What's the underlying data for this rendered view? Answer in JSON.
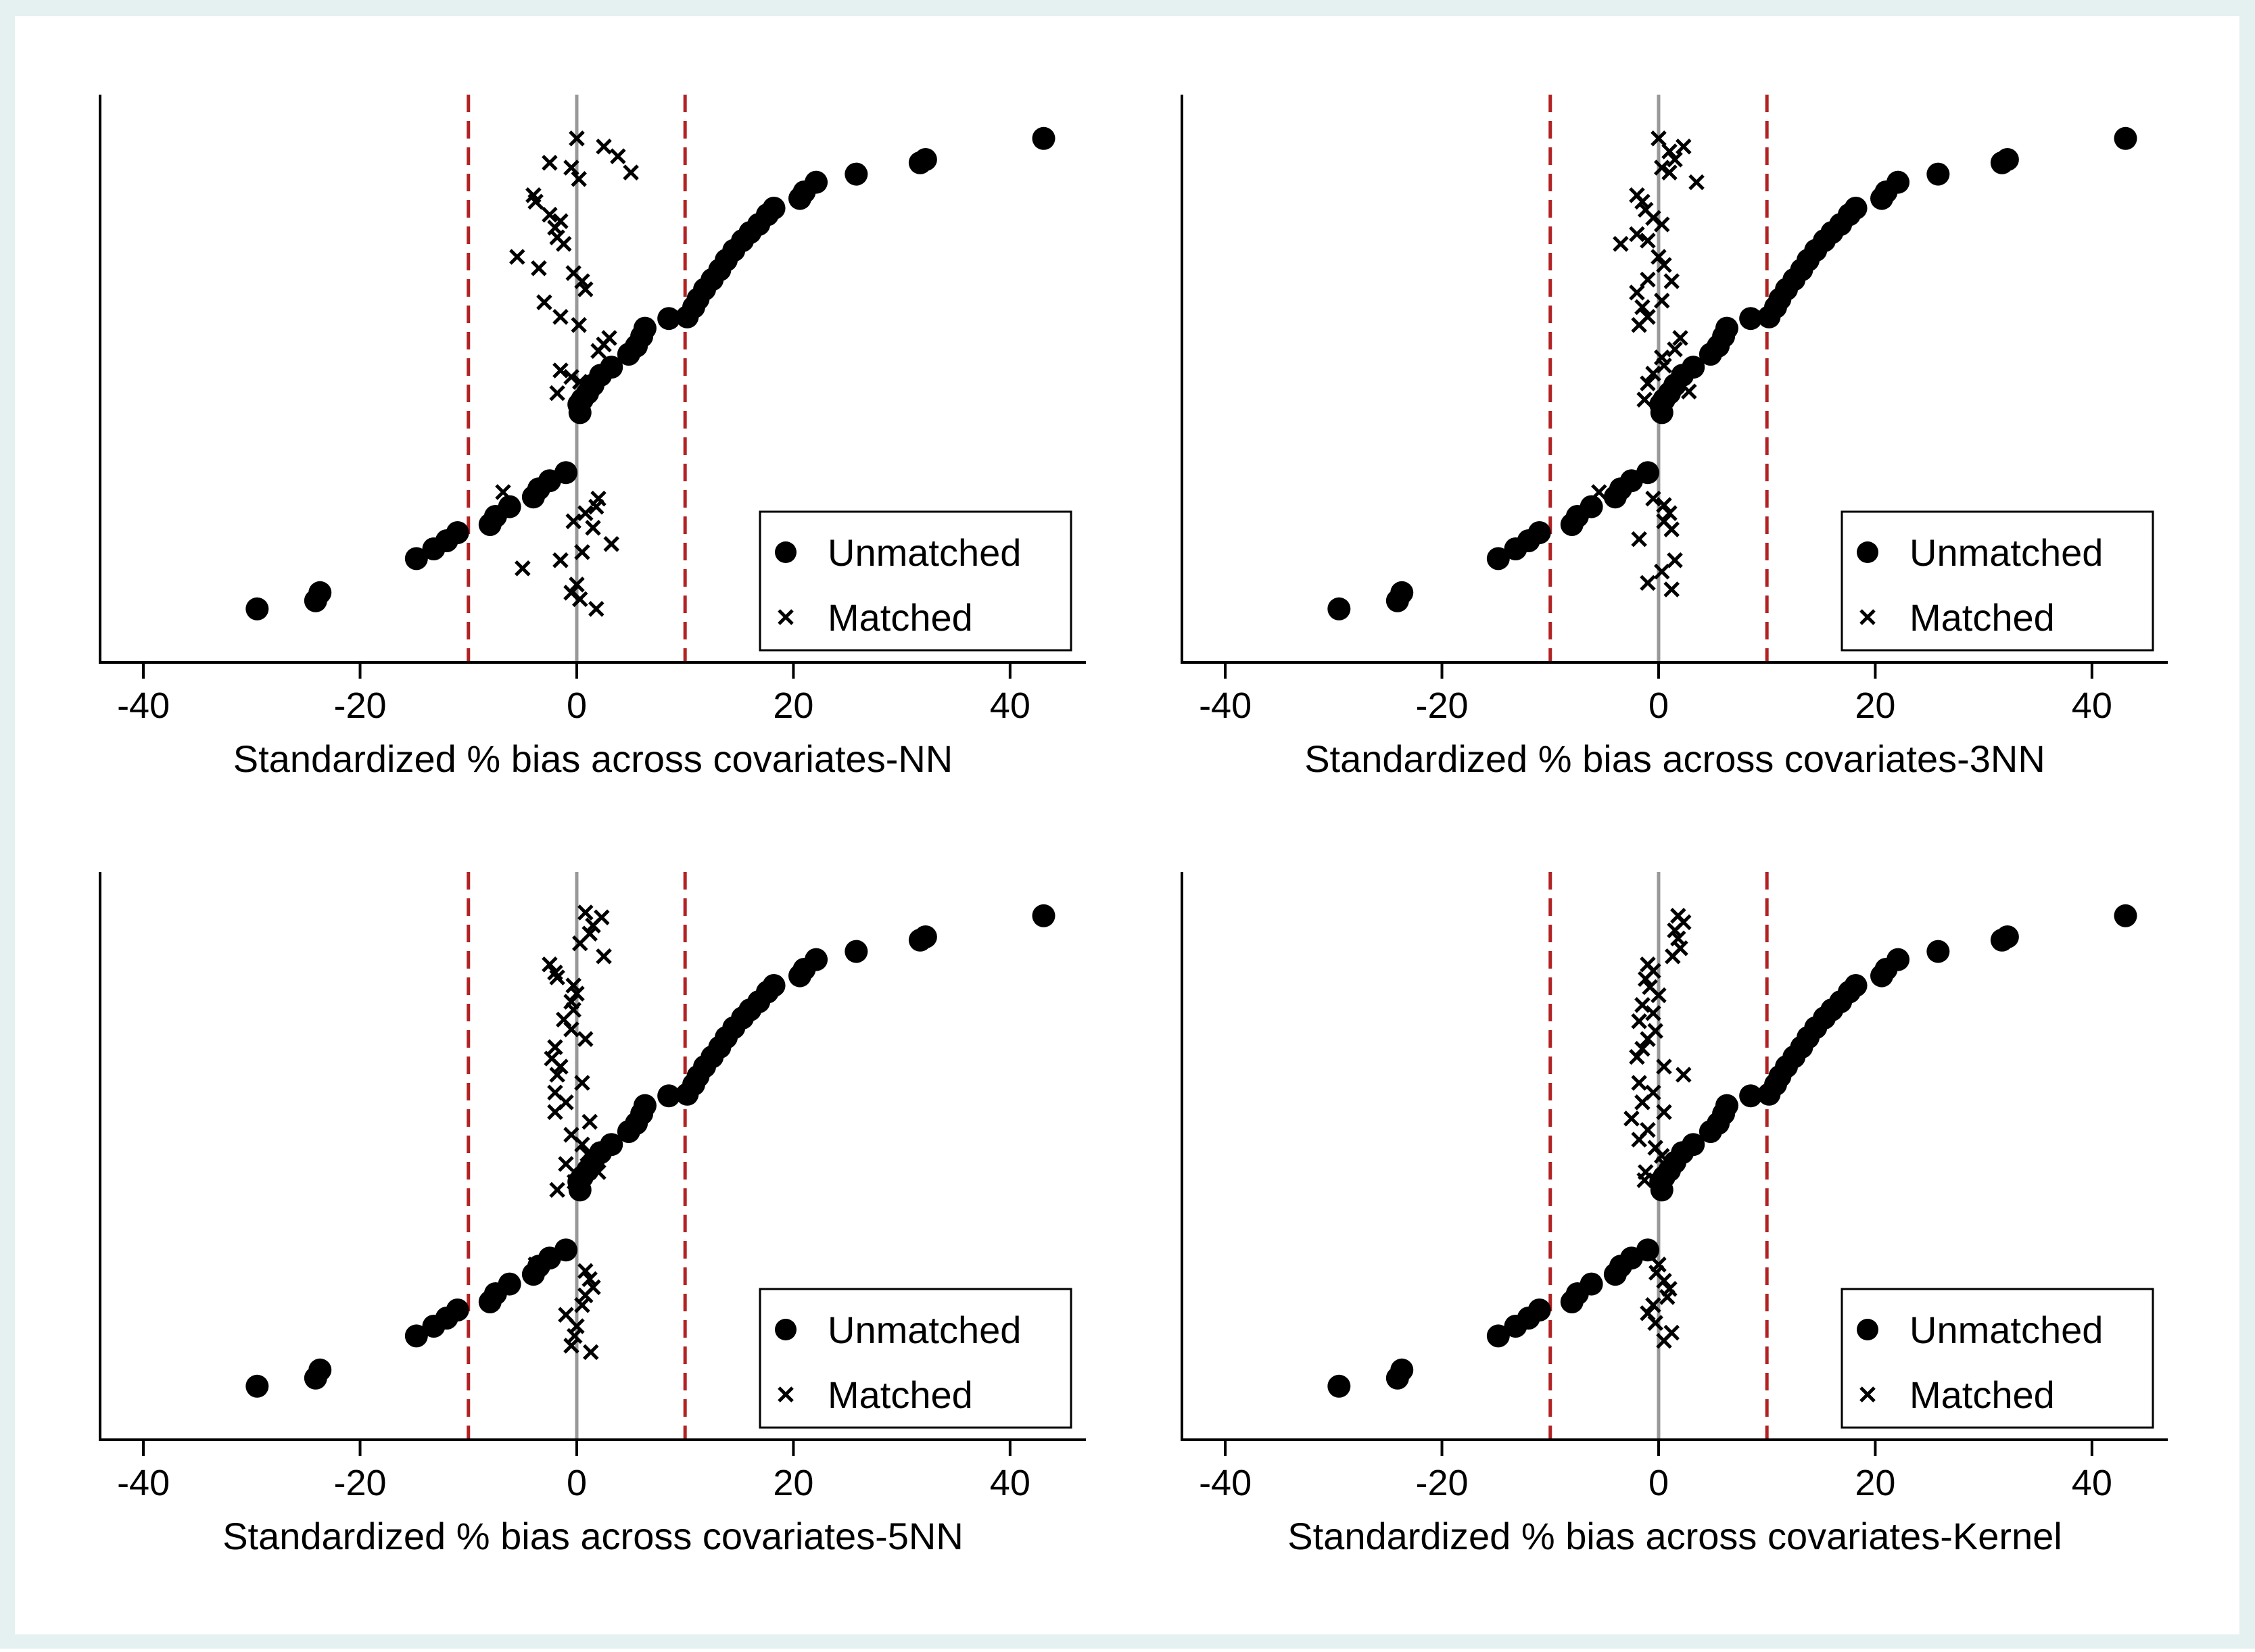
{
  "figure": {
    "background_color": "#e5f0f0",
    "plot_bg_color": "#ffffff",
    "accent_color": "#b22222",
    "zero_line_color": "#999999",
    "marker_color": "#000000"
  },
  "chart_data": [
    {
      "type": "scatter",
      "xlabel": "Standardized % bias across covariates-NN",
      "xlim": [
        -44,
        47
      ],
      "xticks": [
        -40,
        -20,
        0,
        20,
        40
      ],
      "ylim": [
        0,
        35
      ],
      "reference_lines_x": [
        -10,
        10
      ],
      "zero_line_x": 0,
      "legend": {
        "position": "bottom-right",
        "entries": [
          "Unmatched",
          "Matched"
        ]
      },
      "series": [
        {
          "name": "Unmatched",
          "marker": "filled-circle",
          "x": [
            43.1,
            32.2,
            31.7,
            25.8,
            22.1,
            21.0,
            20.6,
            18.2,
            17.6,
            16.8,
            16.0,
            15.3,
            14.5,
            13.8,
            13.2,
            12.5,
            11.8,
            11.2,
            10.8,
            10.2,
            8.5,
            6.3,
            6.0,
            5.5,
            4.8,
            3.2,
            2.2,
            1.5,
            1.0,
            0.5,
            0.2,
            0.3,
            -1.0,
            -2.5,
            -3.5,
            -4.0,
            -6.2,
            -7.5,
            -8.0,
            -11.0,
            -12.0,
            -13.2,
            -14.8,
            -23.7,
            -24.1,
            -29.5
          ],
          "y": [
            32.3,
            31.0,
            30.8,
            30.1,
            29.6,
            29.0,
            28.6,
            28.0,
            27.6,
            27.0,
            26.5,
            26.0,
            25.4,
            24.8,
            24.2,
            23.6,
            23.0,
            22.4,
            21.9,
            21.3,
            21.2,
            20.6,
            20.1,
            19.5,
            19.0,
            18.2,
            17.7,
            17.1,
            16.6,
            16.2,
            15.9,
            15.4,
            11.7,
            11.2,
            10.7,
            10.2,
            9.6,
            9.0,
            8.5,
            8.0,
            7.5,
            7.0,
            6.4,
            4.3,
            3.8,
            3.3
          ]
        },
        {
          "name": "Matched",
          "marker": "x",
          "x": [
            0.0,
            2.5,
            3.8,
            5.0,
            -2.5,
            -0.5,
            0.2,
            -4.0,
            -3.8,
            -2.5,
            -2.0,
            -1.5,
            -1.8,
            -1.2,
            -5.5,
            -3.5,
            -0.3,
            0.5,
            0.8,
            -3.0,
            -1.5,
            0.2,
            3.0,
            2.5,
            2.0,
            -1.5,
            -0.5,
            0.3,
            -1.8,
            -6.8,
            2.0,
            1.8,
            0.8,
            -0.3,
            1.5,
            3.2,
            0.5,
            -1.5,
            -5.0,
            0.0,
            -0.5,
            0.3,
            1.8
          ],
          "y": [
            32.3,
            31.8,
            31.2,
            30.2,
            30.8,
            30.5,
            29.8,
            28.8,
            28.4,
            27.6,
            26.8,
            27.2,
            26.2,
            25.8,
            25.0,
            24.3,
            24.0,
            23.5,
            23.0,
            22.2,
            21.3,
            20.8,
            20.0,
            19.6,
            19.2,
            18.0,
            17.6,
            17.3,
            16.6,
            10.5,
            10.1,
            9.6,
            9.2,
            8.7,
            8.3,
            7.3,
            6.8,
            6.3,
            5.8,
            4.8,
            4.3,
            3.9,
            3.3
          ]
        }
      ]
    },
    {
      "type": "scatter",
      "xlabel": "Standardized % bias across covariates-3NN",
      "xlim": [
        -44,
        47
      ],
      "xticks": [
        -40,
        -20,
        0,
        20,
        40
      ],
      "ylim": [
        0,
        35
      ],
      "reference_lines_x": [
        -10,
        10
      ],
      "zero_line_x": 0,
      "legend": {
        "position": "bottom-right",
        "entries": [
          "Unmatched",
          "Matched"
        ]
      },
      "series": [
        {
          "name": "Unmatched",
          "marker": "filled-circle",
          "x": [
            43.1,
            32.2,
            31.7,
            25.8,
            22.1,
            21.0,
            20.6,
            18.2,
            17.6,
            16.8,
            16.0,
            15.3,
            14.5,
            13.8,
            13.2,
            12.5,
            11.8,
            11.2,
            10.8,
            10.2,
            8.5,
            6.3,
            6.0,
            5.5,
            4.8,
            3.2,
            2.2,
            1.5,
            1.0,
            0.5,
            0.2,
            0.3,
            -1.0,
            -2.5,
            -3.5,
            -4.0,
            -6.2,
            -7.5,
            -8.0,
            -11.0,
            -12.0,
            -13.2,
            -14.8,
            -23.7,
            -24.1,
            -29.5
          ],
          "y": [
            32.3,
            31.0,
            30.8,
            30.1,
            29.6,
            29.0,
            28.6,
            28.0,
            27.6,
            27.0,
            26.5,
            26.0,
            25.4,
            24.8,
            24.2,
            23.6,
            23.0,
            22.4,
            21.9,
            21.3,
            21.2,
            20.6,
            20.1,
            19.5,
            19.0,
            18.2,
            17.7,
            17.1,
            16.6,
            16.2,
            15.9,
            15.4,
            11.7,
            11.2,
            10.7,
            10.2,
            9.6,
            9.0,
            8.5,
            8.0,
            7.5,
            7.0,
            6.4,
            4.3,
            3.8,
            3.3
          ]
        },
        {
          "name": "Matched",
          "marker": "x",
          "x": [
            0.0,
            1.0,
            2.3,
            1.5,
            0.3,
            1.0,
            3.5,
            -2.0,
            -1.5,
            -1.2,
            -0.5,
            0.3,
            -2.0,
            -3.5,
            -1.0,
            0.0,
            0.5,
            -1.0,
            1.2,
            -2.0,
            0.3,
            -1.5,
            -1.0,
            -1.8,
            2.0,
            1.5,
            0.3,
            0.5,
            -0.5,
            -1.0,
            2.8,
            -1.3,
            -5.5,
            -0.5,
            0.5,
            1.0,
            0.5,
            1.2,
            -1.8,
            1.5,
            0.3,
            -1.0,
            1.2
          ],
          "y": [
            32.3,
            31.5,
            31.8,
            31.0,
            30.5,
            30.2,
            29.6,
            28.8,
            28.4,
            27.9,
            27.4,
            27.0,
            26.4,
            25.8,
            26.0,
            25.0,
            24.5,
            23.6,
            23.5,
            22.8,
            22.3,
            21.9,
            21.3,
            20.8,
            20.0,
            19.3,
            18.8,
            18.3,
            17.8,
            17.2,
            16.7,
            16.2,
            10.5,
            10.1,
            9.7,
            9.2,
            8.7,
            8.2,
            7.6,
            6.3,
            5.6,
            4.9,
            4.5
          ]
        }
      ]
    },
    {
      "type": "scatter",
      "xlabel": "Standardized % bias across covariates-5NN",
      "xlim": [
        -44,
        47
      ],
      "xticks": [
        -40,
        -20,
        0,
        20,
        40
      ],
      "ylim": [
        0,
        35
      ],
      "reference_lines_x": [
        -10,
        10
      ],
      "zero_line_x": 0,
      "legend": {
        "position": "bottom-right",
        "entries": [
          "Unmatched",
          "Matched"
        ]
      },
      "series": [
        {
          "name": "Unmatched",
          "marker": "filled-circle",
          "x": [
            43.1,
            32.2,
            31.7,
            25.8,
            22.1,
            21.0,
            20.6,
            18.2,
            17.6,
            16.8,
            16.0,
            15.3,
            14.5,
            13.8,
            13.2,
            12.5,
            11.8,
            11.2,
            10.8,
            10.2,
            8.5,
            6.3,
            6.0,
            5.5,
            4.8,
            3.2,
            2.2,
            1.5,
            1.0,
            0.5,
            0.2,
            0.3,
            -1.0,
            -2.5,
            -3.5,
            -4.0,
            -6.2,
            -7.5,
            -8.0,
            -11.0,
            -12.0,
            -13.2,
            -14.8,
            -23.7,
            -24.1,
            -29.5
          ],
          "y": [
            32.3,
            31.0,
            30.8,
            30.1,
            29.6,
            29.0,
            28.6,
            28.0,
            27.6,
            27.0,
            26.5,
            26.0,
            25.4,
            24.8,
            24.2,
            23.6,
            23.0,
            22.4,
            21.9,
            21.3,
            21.2,
            20.6,
            20.1,
            19.5,
            19.0,
            18.2,
            17.7,
            17.1,
            16.6,
            16.2,
            15.9,
            15.4,
            11.7,
            11.2,
            10.7,
            10.2,
            9.6,
            9.0,
            8.5,
            8.0,
            7.5,
            7.0,
            6.4,
            4.3,
            3.8,
            3.3
          ]
        },
        {
          "name": "Matched",
          "marker": "x",
          "x": [
            0.8,
            2.3,
            1.5,
            1.2,
            0.3,
            2.5,
            -2.5,
            -2.0,
            -1.8,
            -0.3,
            0.0,
            -0.5,
            -0.3,
            -1.2,
            -0.5,
            0.8,
            -2.0,
            -2.3,
            -1.5,
            -1.8,
            0.5,
            -2.0,
            -1.0,
            -2.0,
            1.2,
            -0.5,
            0.5,
            1.0,
            -1.0,
            2.0,
            -0.2,
            -1.8,
            -3.8,
            0.8,
            1.2,
            1.5,
            0.8,
            0.5,
            -1.0,
            0.0,
            -0.2,
            -0.5,
            1.3
          ],
          "y": [
            32.5,
            32.2,
            31.7,
            31.2,
            30.6,
            29.8,
            29.3,
            28.8,
            28.5,
            28.0,
            27.5,
            27.0,
            26.5,
            25.9,
            25.3,
            24.7,
            24.2,
            23.5,
            23.0,
            22.5,
            22.0,
            21.4,
            20.8,
            20.2,
            19.6,
            18.8,
            18.2,
            17.6,
            17.0,
            16.5,
            15.9,
            15.4,
            10.8,
            10.4,
            9.9,
            9.4,
            8.9,
            8.3,
            7.7,
            7.0,
            6.4,
            5.8,
            5.4
          ]
        }
      ]
    },
    {
      "type": "scatter",
      "xlabel": "Standardized % bias across covariates-Kernel",
      "xlim": [
        -44,
        47
      ],
      "xticks": [
        -40,
        -20,
        0,
        20,
        40
      ],
      "ylim": [
        0,
        35
      ],
      "reference_lines_x": [
        -10,
        10
      ],
      "zero_line_x": 0,
      "legend": {
        "position": "bottom-right",
        "entries": [
          "Unmatched",
          "Matched"
        ]
      },
      "series": [
        {
          "name": "Unmatched",
          "marker": "filled-circle",
          "x": [
            43.1,
            32.2,
            31.7,
            25.8,
            22.1,
            21.0,
            20.6,
            18.2,
            17.6,
            16.8,
            16.0,
            15.3,
            14.5,
            13.8,
            13.2,
            12.5,
            11.8,
            11.2,
            10.8,
            10.2,
            8.5,
            6.3,
            6.0,
            5.5,
            4.8,
            3.2,
            2.2,
            1.5,
            1.0,
            0.5,
            0.2,
            0.3,
            -1.0,
            -2.5,
            -3.5,
            -4.0,
            -6.2,
            -7.5,
            -8.0,
            -11.0,
            -12.0,
            -13.2,
            -14.8,
            -23.7,
            -24.1,
            -29.5
          ],
          "y": [
            32.3,
            31.0,
            30.8,
            30.1,
            29.6,
            29.0,
            28.6,
            28.0,
            27.6,
            27.0,
            26.5,
            26.0,
            25.4,
            24.8,
            24.2,
            23.6,
            23.0,
            22.4,
            21.9,
            21.3,
            21.2,
            20.6,
            20.1,
            19.5,
            19.0,
            18.2,
            17.7,
            17.1,
            16.6,
            16.2,
            15.9,
            15.4,
            11.7,
            11.2,
            10.7,
            10.2,
            9.6,
            9.0,
            8.5,
            8.0,
            7.5,
            7.0,
            6.4,
            4.3,
            3.8,
            3.3
          ]
        },
        {
          "name": "Matched",
          "marker": "x",
          "x": [
            1.8,
            2.3,
            1.5,
            1.8,
            2.0,
            1.3,
            -1.0,
            -0.5,
            -1.2,
            -0.8,
            0.0,
            -1.5,
            -0.5,
            -1.8,
            -0.3,
            -1.0,
            -1.5,
            -2.0,
            0.5,
            2.3,
            -1.8,
            -0.5,
            -1.5,
            0.5,
            -2.5,
            -1.0,
            -1.8,
            -0.3,
            0.3,
            0.5,
            -1.2,
            -1.3,
            0.0,
            -0.2,
            0.5,
            1.0,
            0.8,
            -0.5,
            -1.0,
            -0.3,
            1.2,
            0.5
          ],
          "y": [
            32.3,
            31.9,
            31.4,
            30.9,
            30.3,
            29.8,
            29.3,
            28.9,
            28.4,
            27.9,
            27.4,
            26.8,
            26.3,
            25.8,
            25.2,
            24.7,
            24.1,
            23.6,
            23.0,
            22.5,
            22.0,
            21.4,
            20.8,
            20.2,
            19.8,
            19.1,
            18.5,
            18.0,
            17.5,
            17.0,
            16.5,
            16.0,
            10.8,
            10.3,
            9.8,
            9.3,
            8.8,
            8.3,
            7.8,
            7.2,
            6.6,
            6.1
          ]
        }
      ]
    }
  ]
}
